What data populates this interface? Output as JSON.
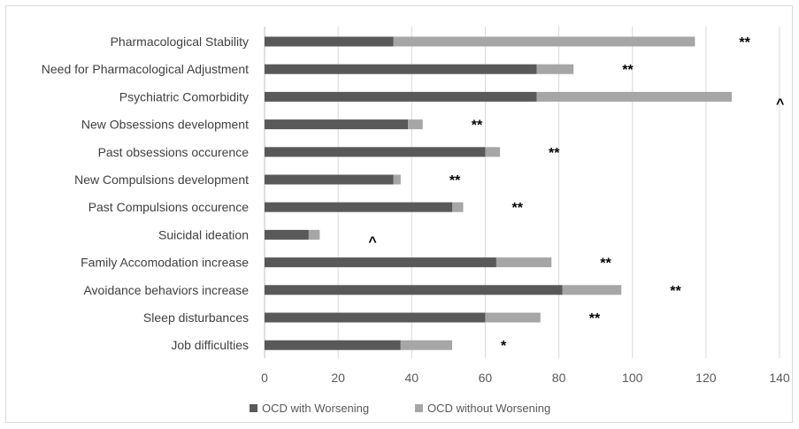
{
  "chart_data": {
    "type": "bar",
    "stacked": true,
    "orientation": "horizontal",
    "categories": [
      "Pharmacological Stability",
      "Need for Pharmacological Adjustment",
      "Psychiatric Comorbidity",
      "New Obsessions development",
      "Past obsessions occurence",
      "New Compulsions development",
      "Past Compulsions occurence",
      "Suicidal ideation",
      "Family Accomodation increase",
      "Avoidance behaviors increase",
      "Sleep disturbances",
      "Job difficulties"
    ],
    "series": [
      {
        "name": "OCD with Worsening",
        "color": "#595959",
        "values": [
          35,
          74,
          74,
          39,
          60,
          35,
          51,
          12,
          63,
          81,
          60,
          37
        ]
      },
      {
        "name": "OCD without Worsening",
        "color": "#a6a6a6",
        "values": [
          82,
          10,
          53,
          4,
          4,
          2,
          3,
          3,
          15,
          16,
          15,
          14
        ]
      }
    ],
    "annotations": [
      "**",
      "**",
      "^",
      "**",
      "**",
      "**",
      "**",
      "^",
      "**",
      "**",
      "**",
      "*"
    ],
    "xlim": [
      0,
      140
    ],
    "xticks": [
      "0",
      "20",
      "40",
      "60",
      "80",
      "100",
      "120",
      "140"
    ],
    "grid": true,
    "legend": "bottom"
  }
}
